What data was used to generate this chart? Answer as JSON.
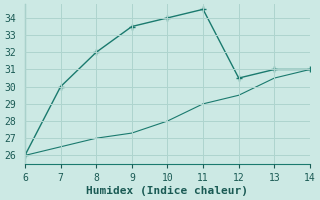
{
  "xlabel": "Humidex (Indice chaleur)",
  "x": [
    6,
    7,
    8,
    9,
    10,
    11,
    12,
    13,
    14
  ],
  "y_curve": [
    26,
    30,
    32,
    33.5,
    34,
    34.5,
    30.5,
    31,
    31
  ],
  "y_line": [
    26,
    26.5,
    27,
    27.3,
    28,
    29,
    29.5,
    30.5,
    31
  ],
  "xlim": [
    6,
    14
  ],
  "ylim": [
    25.5,
    34.8
  ],
  "xticks": [
    6,
    7,
    8,
    9,
    10,
    11,
    12,
    13,
    14
  ],
  "yticks": [
    26,
    27,
    28,
    29,
    30,
    31,
    32,
    33,
    34
  ],
  "line_color": "#1a7a6e",
  "bg_color": "#cce9e4",
  "grid_color": "#aed4ce",
  "tick_fontsize": 7,
  "xlabel_fontsize": 8
}
